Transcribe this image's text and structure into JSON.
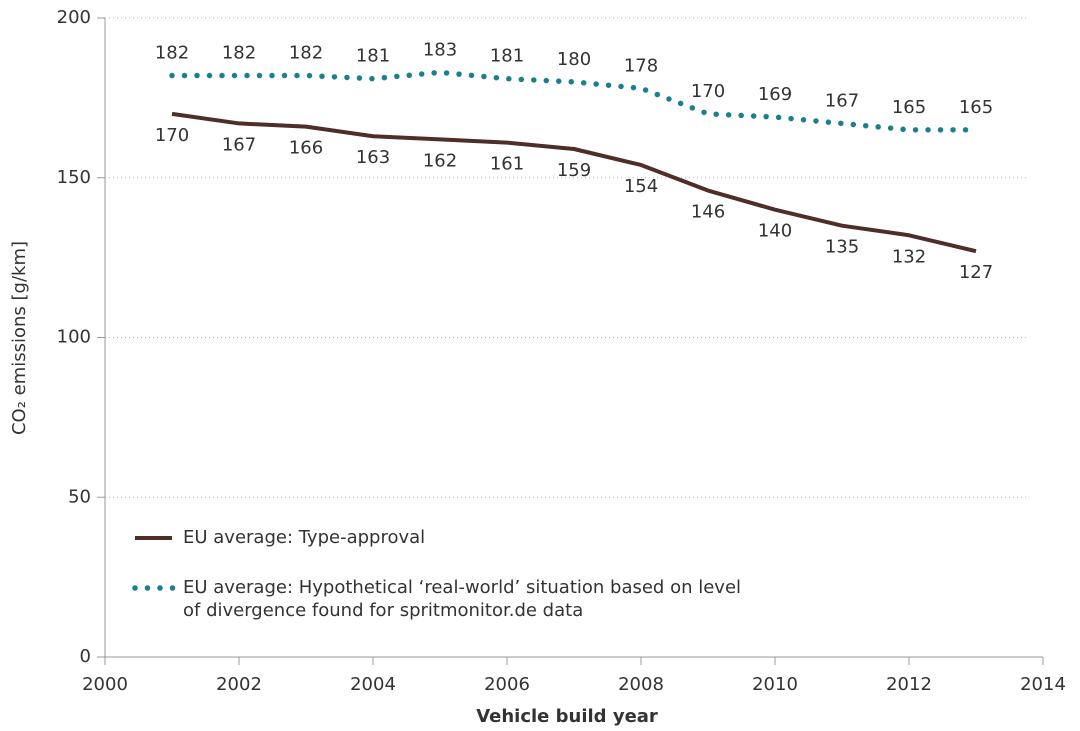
{
  "chart_data": {
    "type": "line",
    "x_label": "Vehicle build year",
    "y_label": "CO₂ emissions [g/km]",
    "x": [
      2001,
      2002,
      2003,
      2004,
      2005,
      2006,
      2007,
      2008,
      2009,
      2010,
      2011,
      2012,
      2013
    ],
    "series": [
      {
        "name": "EU average: Type-approval",
        "color": "#4f2e27",
        "style": "solid",
        "values": [
          170,
          167,
          166,
          163,
          162,
          161,
          159,
          154,
          146,
          140,
          135,
          132,
          127
        ]
      },
      {
        "name": "EU average: Hypothetical ‘real-world’ situation based on level of divergence found for spritmonitor.de data",
        "color": "#1b7f8c",
        "style": "dotted",
        "values": [
          182,
          182,
          182,
          181,
          183,
          181,
          180,
          178,
          170,
          169,
          167,
          165,
          165
        ]
      }
    ],
    "xlim": [
      2000,
      2014
    ],
    "xticks": [
      2000,
      2002,
      2004,
      2006,
      2008,
      2010,
      2012,
      2014
    ],
    "ylim": [
      0,
      200
    ],
    "yticks": [
      0,
      50,
      100,
      150,
      200
    ],
    "grid": true,
    "legend": "lower left"
  }
}
